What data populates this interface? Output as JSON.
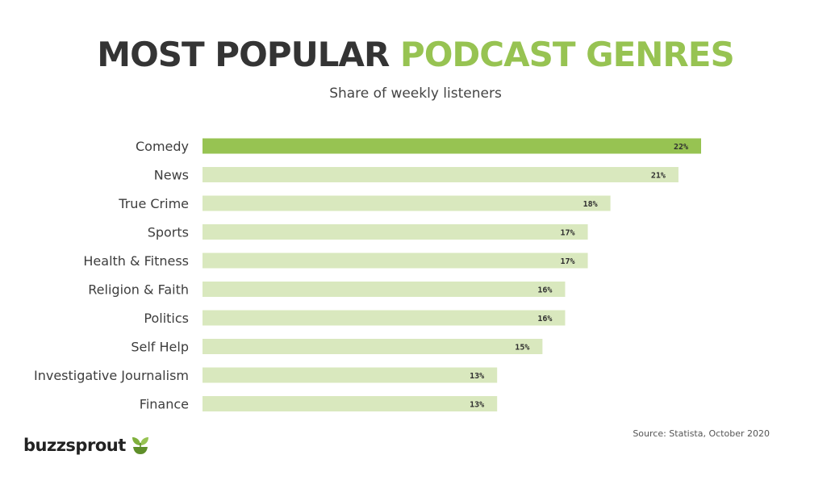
{
  "header": {
    "title_main": "MOST POPULAR ",
    "title_accent": "PODCAST GENRES",
    "subtitle": "Share of weekly listeners"
  },
  "chart_data": {
    "type": "bar",
    "orientation": "horizontal",
    "title": "MOST POPULAR PODCAST GENRES",
    "subtitle": "Share of weekly listeners",
    "categories": [
      "Comedy",
      "News",
      "True Crime",
      "Sports",
      "Health & Fitness",
      "Religion & Faith",
      "Politics",
      "Self Help",
      "Investigative Journalism",
      "Finance"
    ],
    "values": [
      22,
      21,
      18,
      17,
      17,
      16,
      16,
      15,
      13,
      13
    ],
    "value_labels": [
      "22%",
      "21%",
      "18%",
      "17%",
      "17%",
      "16%",
      "16%",
      "15%",
      "13%",
      "13%"
    ],
    "unit": "%",
    "xlim": [
      0,
      22
    ],
    "grid": false,
    "highlight_index": 0,
    "colors": {
      "highlight": "#97c352",
      "bar": "#d9e8be"
    }
  },
  "footer": {
    "source": "Source: Statista, October 2020",
    "logo_text": "buzzsprout",
    "logo_icon": "sprout-icon"
  }
}
